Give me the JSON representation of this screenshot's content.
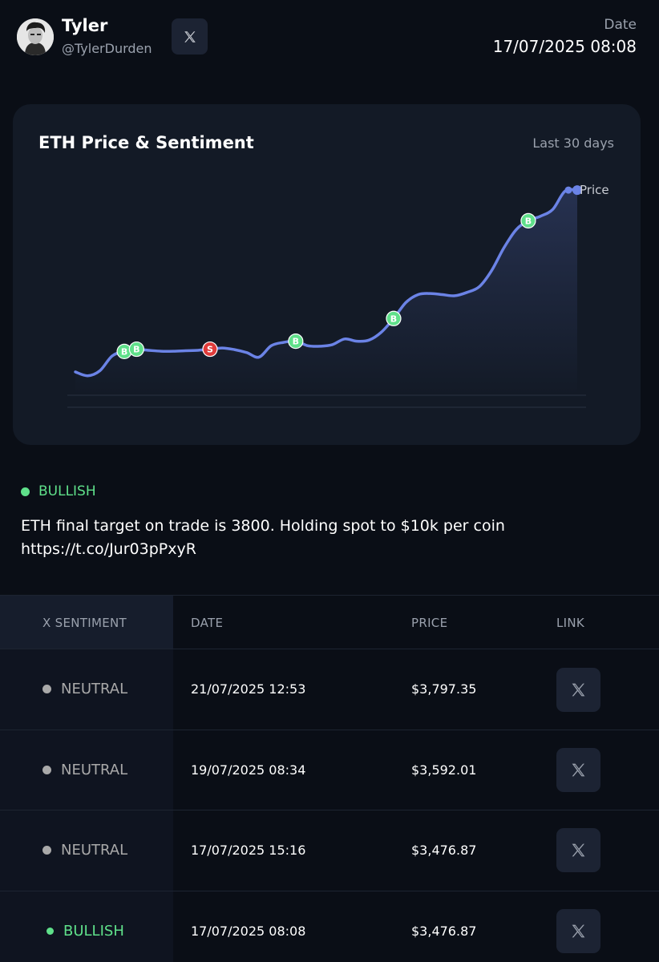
{
  "header": {
    "user_name": "Tyler",
    "user_handle": "@TylerDurden",
    "date_label": "Date",
    "date_value": "17/07/2025 08:08"
  },
  "chart_card": {
    "title": "ETH Price & Sentiment",
    "range_label": "Last 30 days"
  },
  "chart_data": {
    "type": "line",
    "series": [
      {
        "name": "Price",
        "color": "#6b83e6",
        "values": [
          2.5,
          0.8,
          3.0,
          9.5,
          11.5,
          12.5,
          12.0,
          11.6,
          11.6,
          11.8,
          12.0,
          12.5,
          13.0,
          12.3,
          11.0,
          9.0,
          14.0,
          15.5,
          16.0,
          14.0,
          13.8,
          14.5,
          17.0,
          16.0,
          16.5,
          20.0,
          26.0,
          33.0,
          36.5,
          37.0,
          36.5,
          36.0,
          37.5,
          40.0,
          47.0,
          57.0,
          65.0,
          69.0,
          71.0,
          74.0,
          82.0,
          82.5
        ]
      }
    ],
    "markers": [
      {
        "label": "B",
        "kind": "bullish",
        "index": 4
      },
      {
        "label": "B",
        "kind": "bullish",
        "index": 5
      },
      {
        "label": "S",
        "kind": "bearish",
        "index": 11
      },
      {
        "label": "B",
        "kind": "bullish",
        "index": 18
      },
      {
        "label": "B",
        "kind": "bullish",
        "index": 26
      },
      {
        "label": "B",
        "kind": "bullish",
        "index": 37
      }
    ],
    "legend": {
      "label": "Price",
      "placement": "top-right"
    },
    "colors": {
      "bullish": "#5fe08a",
      "bearish": "#e03b3b",
      "line": "#6b83e6"
    }
  },
  "post": {
    "sentiment": "BULLISH",
    "text_line1": "ETH final target on trade is 3800. Holding spot to $10k per coin",
    "text_line2": "https://t.co/Jur03pPxyR"
  },
  "table": {
    "headers": {
      "sentiment": "X SENTIMENT",
      "date": "DATE",
      "price": "PRICE",
      "link": "LINK"
    },
    "rows": [
      {
        "sentiment": "NEUTRAL",
        "date": "21/07/2025 12:53",
        "price": "$3,797.35"
      },
      {
        "sentiment": "NEUTRAL",
        "date": "19/07/2025 08:34",
        "price": "$3,592.01"
      },
      {
        "sentiment": "NEUTRAL",
        "date": "17/07/2025 15:16",
        "price": "$3,476.87"
      },
      {
        "sentiment": "BULLISH",
        "date": "17/07/2025 08:08",
        "price": "$3,476.87"
      }
    ]
  }
}
